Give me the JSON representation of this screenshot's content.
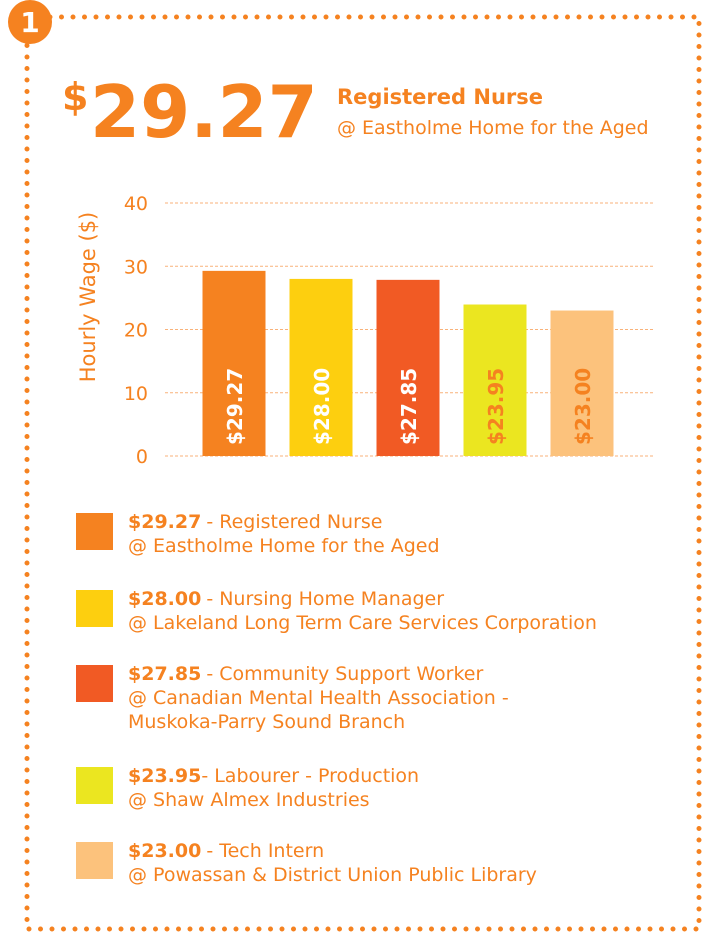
{
  "badge": "1",
  "highlight": {
    "symbol": "$",
    "amount": "29.27",
    "title": "Registered Nurse",
    "subtitle": "@ Eastholme Home for the Aged"
  },
  "chart_data": {
    "type": "bar",
    "y_label": "Hourly Wage ($)",
    "categories": [
      "Registered Nurse",
      "Nursing Home Manager",
      "Community Support Worker",
      "Labourer - Production",
      "Tech Intern"
    ],
    "values": [
      29.27,
      28.0,
      27.85,
      23.95,
      23.0
    ],
    "value_labels": [
      "$29.27",
      "$28.00",
      "$27.85",
      "$23.95",
      "$23.00"
    ],
    "colors": [
      "#f58220",
      "#fdcf0f",
      "#f15a24",
      "#ebe620",
      "#fcc27c"
    ],
    "label_colors": [
      "#ffffff",
      "#ffffff",
      "#ffffff",
      "#f58220",
      "#f58220"
    ],
    "ylim": [
      0,
      40
    ],
    "yticks": [
      0,
      10,
      20,
      30,
      40
    ],
    "grid": true,
    "legend_labels": [
      "- Registered Nurse",
      "- Nursing Home Manager",
      "- Community Support Worker",
      "- Labourer - Production",
      "-  Tech Intern"
    ],
    "employers": [
      [
        "@ Eastholme Home for the Aged"
      ],
      [
        "@ Lakeland Long Term Care Services Corporation"
      ],
      [
        "@ Canadian Mental Health Association -",
        "Muskoka-Parry Sound Branch"
      ],
      [
        "@ Shaw Almex Industries"
      ],
      [
        "@ Powassan & District Union Public Library"
      ]
    ]
  }
}
